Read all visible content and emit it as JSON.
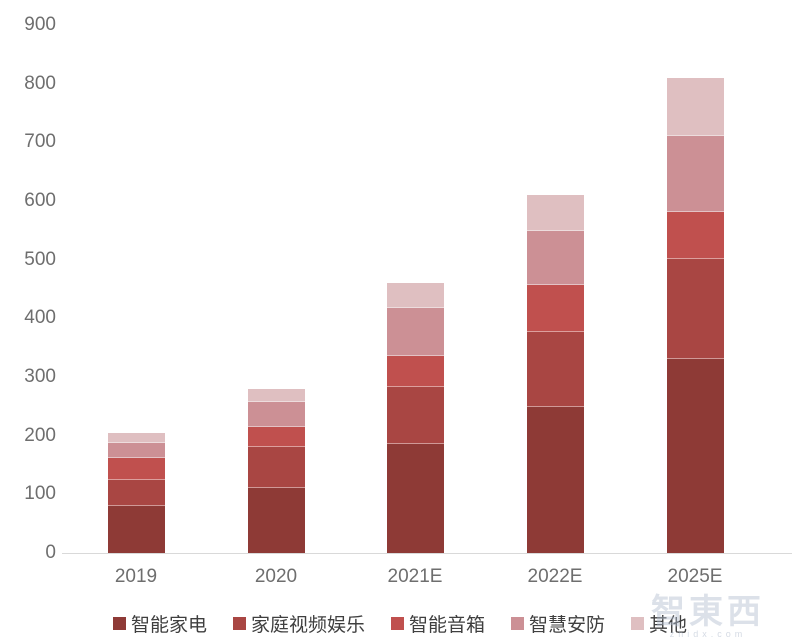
{
  "chart_data": {
    "type": "bar",
    "stacked": true,
    "title": "",
    "xlabel": "",
    "ylabel": "",
    "categories": [
      "2019",
      "2020",
      "2021E",
      "2022E",
      "2025E"
    ],
    "series": [
      {
        "name": "智能家电",
        "color": "#8e3a36",
        "values": [
          80,
          110,
          185,
          249,
          331
        ]
      },
      {
        "name": "家庭视频娱乐",
        "color": "#a94643",
        "values": [
          45,
          71,
          98,
          127,
          171
        ]
      },
      {
        "name": "智能音箱",
        "color": "#c0504e",
        "values": [
          37,
          33,
          53,
          80,
          79
        ]
      },
      {
        "name": "智慧安防",
        "color": "#cc9095",
        "values": [
          26,
          43,
          81,
          93,
          129
        ]
      },
      {
        "name": "其他",
        "color": "#dfbfc1",
        "values": [
          17,
          23,
          43,
          61,
          100
        ]
      }
    ],
    "totals": [
      205,
      280,
      460,
      610,
      810
    ],
    "ylim": [
      0,
      900
    ],
    "yticks": [
      0,
      100,
      200,
      300,
      400,
      500,
      600,
      700,
      800,
      900
    ],
    "grid": false,
    "legend_position": "bottom",
    "axis_line_color": "#d9d9d9",
    "tick_label_color": "#6e6e6e",
    "legend_label_color": "#3f3f3f"
  },
  "watermark": {
    "text": "智東西",
    "subtext": "zhidx.com"
  }
}
